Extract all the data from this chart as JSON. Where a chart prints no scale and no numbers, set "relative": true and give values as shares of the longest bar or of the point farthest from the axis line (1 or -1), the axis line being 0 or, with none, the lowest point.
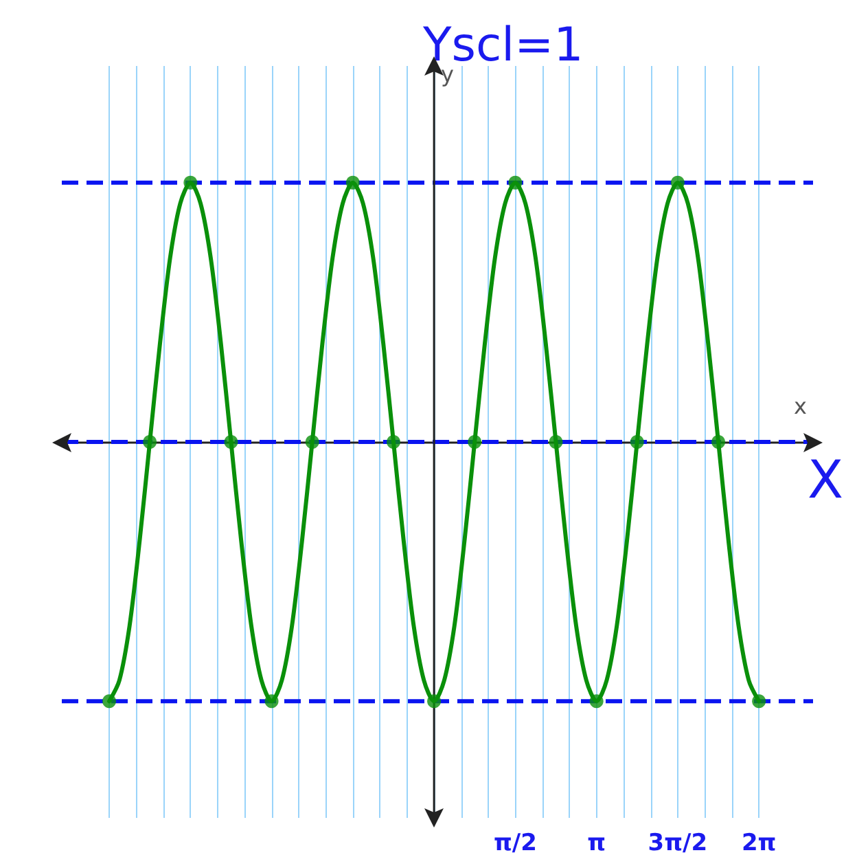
{
  "chart_data": {
    "type": "line",
    "xlabel": "x",
    "ylabel": "y",
    "relative": true,
    "annotations": [
      "Yscl=1",
      "X"
    ],
    "xlim": [
      -7.2,
      7.33
    ],
    "xticks": [
      {
        "value": -6.283,
        "label": null
      },
      {
        "value": -5.76,
        "label": null
      },
      {
        "value": -5.236,
        "label": null
      },
      {
        "value": -4.712,
        "label": null
      },
      {
        "value": -4.189,
        "label": null
      },
      {
        "value": -3.665,
        "label": null
      },
      {
        "value": -3.142,
        "label": null
      },
      {
        "value": -2.618,
        "label": null
      },
      {
        "value": -2.094,
        "label": null
      },
      {
        "value": -1.571,
        "label": null
      },
      {
        "value": -1.047,
        "label": null
      },
      {
        "value": -0.524,
        "label": null
      },
      {
        "value": 0,
        "label": null
      },
      {
        "value": 0.524,
        "label": null
      },
      {
        "value": 1.047,
        "label": null
      },
      {
        "value": 1.571,
        "label": "π/2"
      },
      {
        "value": 2.094,
        "label": null
      },
      {
        "value": 2.618,
        "label": null
      },
      {
        "value": 3.142,
        "label": "π"
      },
      {
        "value": 3.665,
        "label": null
      },
      {
        "value": 4.189,
        "label": null
      },
      {
        "value": 4.712,
        "label": "3π/2"
      },
      {
        "value": 5.236,
        "label": null
      },
      {
        "value": 5.76,
        "label": null
      },
      {
        "value": 6.283,
        "label": "2π"
      }
    ],
    "tick_labels": "x",
    "grid": "x",
    "ref_lines": [
      {
        "axis": "y",
        "value": 1,
        "label": null,
        "color": "#0a14f0",
        "line_style": "dashed"
      },
      {
        "axis": "y",
        "value": 0,
        "label": null,
        "color": "#0a14f0",
        "line_style": "dashed"
      },
      {
        "axis": "y",
        "value": -1,
        "label": null,
        "color": "#0a14f0",
        "line_style": "dashed"
      },
      {
        "axis": "x",
        "value": 0,
        "label": null,
        "color": "#222222",
        "line_style": "solid"
      }
    ],
    "series": [
      {
        "marker": "none",
        "line_style": "solid",
        "color": "#0a900a",
        "x": [
          -6.283,
          -6.087,
          -5.89,
          -5.694,
          -5.498,
          -5.301,
          -5.105,
          -4.909,
          -4.712,
          -4.516,
          -4.32,
          -4.123,
          -3.927,
          -3.731,
          -3.534,
          -3.338,
          -3.142,
          -2.945,
          -2.749,
          -2.553,
          -2.356,
          -2.16,
          -1.963,
          -1.767,
          -1.571,
          -1.374,
          -1.178,
          -0.982,
          -0.785,
          -0.589,
          -0.393,
          -0.196,
          0,
          0.196,
          0.393,
          0.589,
          0.785,
          0.982,
          1.178,
          1.374,
          1.571,
          1.767,
          1.963,
          2.16,
          2.356,
          2.553,
          2.749,
          2.945,
          3.142,
          3.338,
          3.534,
          3.731,
          3.927,
          4.123,
          4.32,
          4.516,
          4.712,
          4.909,
          5.105,
          5.301,
          5.498,
          5.694,
          5.89,
          6.087,
          6.283
        ],
        "values": [
          -1,
          -0.92,
          -0.71,
          -0.38,
          0,
          0.38,
          0.71,
          0.92,
          1,
          0.92,
          0.71,
          0.38,
          0,
          -0.38,
          -0.71,
          -0.92,
          -1,
          -0.92,
          -0.71,
          -0.38,
          0,
          0.38,
          0.71,
          0.92,
          1,
          0.92,
          0.71,
          0.38,
          0,
          -0.38,
          -0.71,
          -0.92,
          -1,
          -0.92,
          -0.71,
          -0.38,
          0,
          0.38,
          0.71,
          0.92,
          1,
          0.92,
          0.71,
          0.38,
          0,
          -0.38,
          -0.71,
          -0.92,
          -1,
          -0.92,
          -0.71,
          -0.38,
          0,
          0.38,
          0.71,
          0.92,
          1,
          0.92,
          0.71,
          0.38,
          0,
          -0.38,
          -0.71,
          -0.92,
          -1
        ]
      },
      {
        "type": "scatter",
        "marker": "circle",
        "color": "#0a900a",
        "x": [
          -6.283,
          -5.498,
          -4.712,
          -3.927,
          -3.142,
          -2.356,
          -1.571,
          -0.785,
          0,
          0.785,
          1.571,
          2.356,
          3.142,
          3.927,
          4.712,
          5.498,
          6.283
        ],
        "values": [
          -1,
          0,
          1,
          0,
          -1,
          0,
          1,
          0,
          -1,
          0,
          1,
          0,
          -1,
          0,
          1,
          0,
          -1
        ]
      }
    ]
  }
}
